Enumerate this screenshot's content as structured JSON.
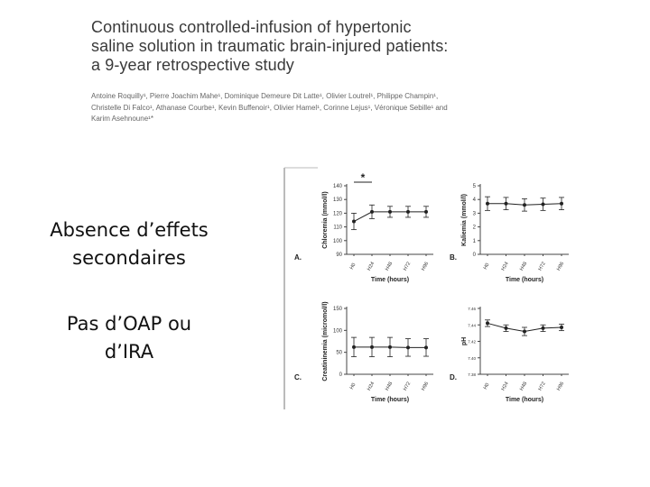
{
  "paper": {
    "title_lines": [
      "Continuous controlled-infusion of hypertonic",
      "saline solution in traumatic brain-injured patients:",
      "a 9-year retrospective study"
    ],
    "author_lines": [
      "Antoine Roquilly¹, Pierre Joachim Mahe¹, Dominique Demeure Dit Latte¹, Olivier Loutrel¹, Philippe Champin¹,",
      "Christelle Di Falco¹, Athanase Courbe¹, Kevin Buffenoir¹, Olivier Hamel¹, Corinne Lejus¹, Véronique Sebille¹ and",
      "Karim Asehnoune¹*"
    ]
  },
  "slide": {
    "block1": [
      "Absence d’effets",
      "secondaires"
    ],
    "block2": [
      "Pas d’OAP ou",
      "d’IRA"
    ]
  },
  "chart_data": [
    {
      "type": "line",
      "panel": "A.",
      "ylabel": "Chloremia (mmol/l)",
      "xlabel": "Time (hours)",
      "categories": [
        "H0",
        "H24",
        "H48",
        "H72",
        "H96"
      ],
      "yticks": [
        "90",
        "100",
        "110",
        "120",
        "130",
        "140"
      ],
      "ylim": [
        90,
        140
      ],
      "values": [
        114,
        121,
        121,
        121,
        121
      ],
      "errors": [
        6,
        5,
        4,
        4,
        4
      ],
      "annotation": "*"
    },
    {
      "type": "line",
      "panel": "B.",
      "ylabel": "Kaliemia (mmol/l)",
      "xlabel": "Time (hours)",
      "categories": [
        "H0",
        "H24",
        "H48",
        "H72",
        "H96"
      ],
      "yticks": [
        "0",
        "1",
        "2",
        "3",
        "4",
        "5"
      ],
      "ylim": [
        0,
        5
      ],
      "values": [
        3.7,
        3.7,
        3.6,
        3.65,
        3.7
      ],
      "errors": [
        0.5,
        0.45,
        0.45,
        0.45,
        0.45
      ]
    },
    {
      "type": "line",
      "panel": "C.",
      "ylabel": "Creatininemia (micromol/l)",
      "xlabel": "Time (hours)",
      "categories": [
        "H0",
        "H24",
        "H48",
        "H72",
        "H96"
      ],
      "yticks": [
        "0",
        "50",
        "100",
        "150"
      ],
      "ylim": [
        0,
        150
      ],
      "values": [
        62,
        62,
        62,
        61,
        61
      ],
      "errors": [
        22,
        22,
        22,
        20,
        20
      ]
    },
    {
      "type": "line",
      "panel": "D.",
      "ylabel": "pH",
      "xlabel": "Time (hours)",
      "categories": [
        "H0",
        "H24",
        "H48",
        "H72",
        "H96"
      ],
      "yticks": [
        "7.38",
        "7.40",
        "7.42",
        "7.44",
        "7.46"
      ],
      "ylim": [
        7.38,
        7.46
      ],
      "values": [
        7.442,
        7.436,
        7.432,
        7.436,
        7.437
      ],
      "errors": [
        0.004,
        0.004,
        0.005,
        0.004,
        0.004
      ]
    }
  ]
}
